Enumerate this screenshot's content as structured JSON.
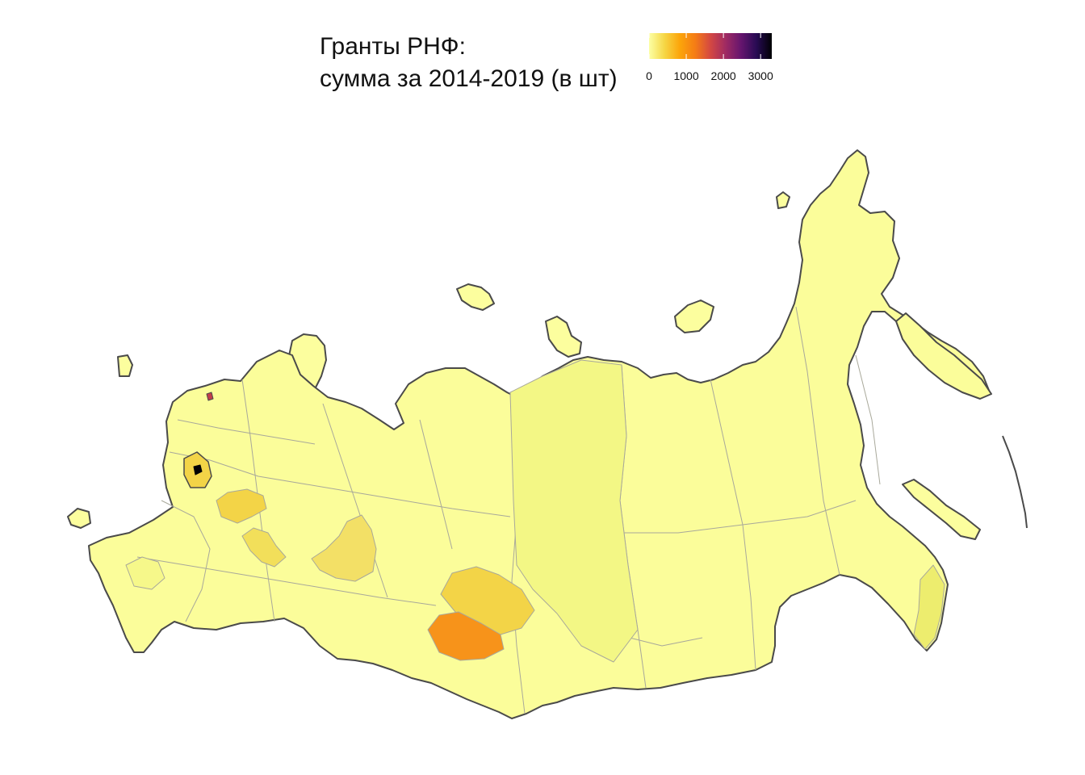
{
  "title": {
    "line1": "Гранты РНФ:",
    "line2": "сумма за 2014-2019 (в шт)"
  },
  "legend": {
    "ticks": [
      {
        "label": "0",
        "value": 0
      },
      {
        "label": "1000",
        "value": 1000
      },
      {
        "label": "2000",
        "value": 2000
      },
      {
        "label": "3000",
        "value": 3000
      }
    ],
    "max": 3300,
    "colors": [
      "#fcffa4",
      "#f6d746",
      "#fca50a",
      "#f57d15",
      "#d44842",
      "#9f2a63",
      "#65156e",
      "#280b53",
      "#000004"
    ]
  },
  "chart_data": {
    "type": "choropleth",
    "legend_placement": "top-right",
    "grid": false,
    "regions": [
      {
        "id": "moscow",
        "value": 3200
      },
      {
        "id": "moscow-oblast",
        "value": 380
      },
      {
        "id": "saint-petersburg",
        "value": 1700
      },
      {
        "id": "novosibirsk",
        "value": 900
      },
      {
        "id": "tomsk",
        "value": 350
      },
      {
        "id": "sverdlovsk",
        "value": 260
      },
      {
        "id": "nizhny-novgorod",
        "value": 330
      },
      {
        "id": "tatarstan",
        "value": 290
      },
      {
        "id": "primorsky",
        "value": 110
      },
      {
        "id": "krasnoyarsk",
        "value": 90
      },
      {
        "id": "rostov",
        "value": 80
      },
      {
        "id": "other",
        "value": 20
      }
    ]
  }
}
